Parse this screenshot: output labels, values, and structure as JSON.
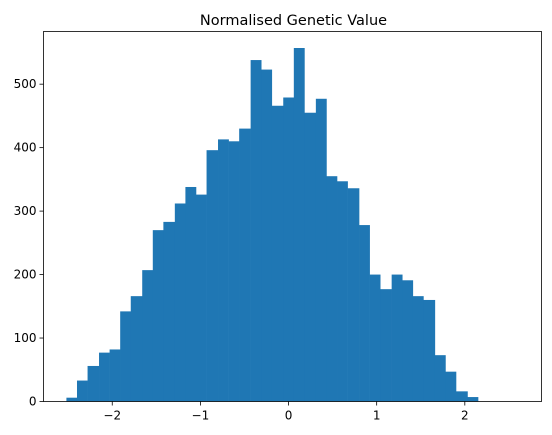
{
  "chart_data": {
    "type": "bar",
    "title": "Normalised Genetic Value",
    "xlabel": "",
    "ylabel": "",
    "bar_color": "#1f77b4",
    "xlim": [
      -2.78,
      2.87
    ],
    "ylim": [
      0,
      583
    ],
    "x_ticks": [
      -2,
      -1,
      0,
      1,
      2
    ],
    "x_tick_labels": [
      "−2",
      "−1",
      "0",
      "1",
      "2"
    ],
    "y_ticks": [
      0,
      100,
      200,
      300,
      400,
      500
    ],
    "y_tick_labels": [
      "0",
      "100",
      "200",
      "300",
      "400",
      "500"
    ],
    "bin_edges": [
      -2.52,
      -2.4,
      -2.28,
      -2.15,
      -2.03,
      -1.91,
      -1.79,
      -1.66,
      -1.54,
      -1.42,
      -1.29,
      -1.17,
      -1.05,
      -0.93,
      -0.8,
      -0.68,
      -0.56,
      -0.43,
      -0.31,
      -0.19,
      -0.06,
      0.06,
      0.18,
      0.31,
      0.43,
      0.55,
      0.67,
      0.8,
      0.92,
      1.04,
      1.17,
      1.29,
      1.41,
      1.53,
      1.66,
      1.78,
      1.9,
      2.03,
      2.15,
      2.27,
      2.39,
      2.52,
      2.64
    ],
    "values": [
      6,
      33,
      56,
      77,
      82,
      142,
      166,
      207,
      270,
      283,
      312,
      338,
      326,
      396,
      413,
      410,
      430,
      538,
      523,
      466,
      479,
      557,
      455,
      477,
      355,
      347,
      336,
      278,
      200,
      177,
      200,
      191,
      166,
      160,
      73,
      47,
      16,
      7,
      0,
      0,
      0,
      0
    ]
  }
}
